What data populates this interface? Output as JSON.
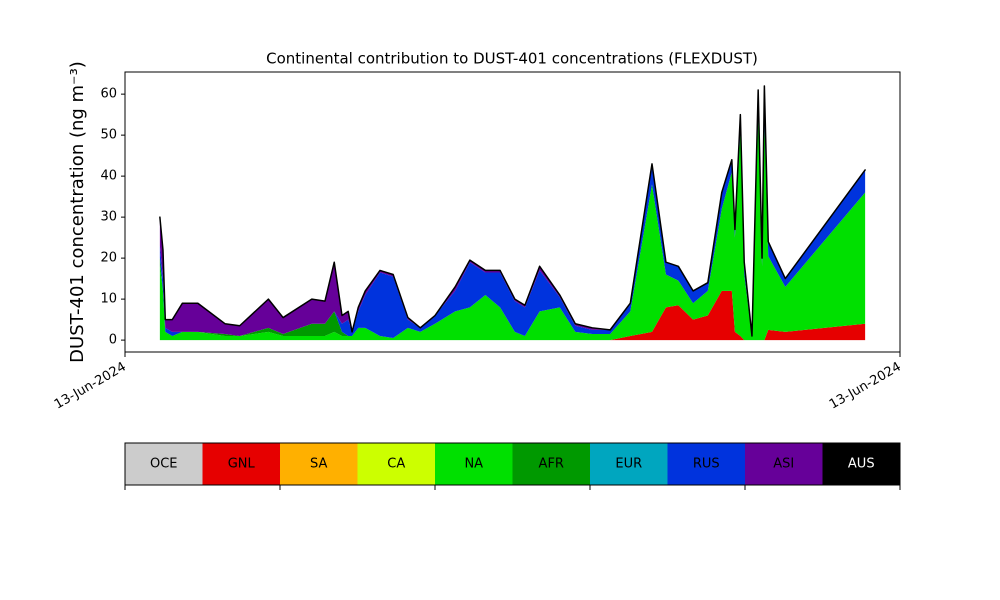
{
  "chart_data": {
    "type": "stacked-area",
    "title": "Continental contribution to DUST-401 concentrations (FLEXDUST)",
    "ylabel": "DUST-401 concentration (ng m⁻³)",
    "x": [
      4.5,
      4.9,
      5.2,
      6.1,
      7.4,
      9.4,
      12.9,
      14.8,
      18.5,
      20.4,
      24.1,
      25.8,
      27.0,
      28.0,
      28.8,
      29.3,
      30.1,
      31.0,
      32.9,
      34.6,
      36.5,
      38.1,
      40.0,
      42.6,
      44.5,
      46.5,
      48.4,
      50.3,
      51.6,
      53.5,
      56.1,
      58.1,
      60.3,
      62.6,
      65.2,
      68.0,
      69.8,
      71.4,
      73.3,
      75.2,
      77.0,
      78.3,
      78.7,
      79.4,
      79.9,
      80.9,
      81.7,
      82.2,
      82.5,
      83.0,
      85.2,
      95.5
    ],
    "xlim": [
      0,
      100
    ],
    "xticks": [
      {
        "value": 0,
        "label": "13-Jun-2024"
      },
      {
        "value": 100,
        "label": "13-Jun-2024"
      }
    ],
    "ylim": [
      -2.9,
      65.4
    ],
    "yticks": [
      0,
      10,
      20,
      30,
      40,
      50,
      60
    ],
    "series": [
      {
        "name": "OCE",
        "color": "#cccccc",
        "values": [
          0,
          0,
          0,
          0,
          0,
          0,
          0,
          0,
          0,
          0,
          0,
          0,
          0,
          0,
          0,
          0,
          0,
          0,
          0,
          0,
          0,
          0,
          0,
          0,
          0,
          0,
          0,
          0,
          0,
          0,
          0,
          0,
          0,
          0,
          0,
          0,
          0,
          0,
          0,
          0,
          0,
          0,
          0,
          0,
          0,
          0,
          0,
          0,
          0,
          0,
          0,
          0
        ]
      },
      {
        "name": "GNL",
        "color": "#e60000",
        "values": [
          0,
          0,
          0,
          0,
          0,
          0,
          0,
          0,
          0,
          0,
          0,
          0,
          0,
          0,
          0,
          0,
          0,
          0,
          0,
          0,
          0,
          0,
          0,
          0,
          0,
          0,
          0,
          0,
          0,
          0,
          0,
          0,
          0,
          0,
          1,
          2,
          8,
          8.5,
          5,
          6,
          12,
          12,
          2,
          1,
          0,
          0,
          0,
          0,
          0,
          2.5,
          2,
          4
        ]
      },
      {
        "name": "SA",
        "color": "#ffb000",
        "values": [
          0,
          0,
          0,
          0,
          0,
          0,
          0,
          0,
          0,
          0,
          0,
          0,
          0,
          0,
          0,
          0,
          0,
          0,
          0,
          0,
          0,
          0,
          0,
          0,
          0,
          0,
          0,
          0,
          0,
          0,
          0,
          0,
          0,
          0,
          0,
          0,
          0,
          0,
          0,
          0,
          0,
          0,
          0,
          0,
          0,
          0,
          0,
          0,
          0,
          0,
          0,
          0
        ]
      },
      {
        "name": "CA",
        "color": "#ccff00",
        "values": [
          0,
          0,
          0,
          0,
          0,
          0,
          0,
          0,
          0,
          0,
          0,
          0,
          0,
          0,
          0,
          0,
          0,
          0,
          0,
          0,
          0,
          0,
          0,
          0,
          0,
          0,
          0,
          0,
          0,
          0,
          0,
          0,
          0,
          0,
          0,
          0,
          0,
          0,
          0,
          0,
          0,
          0,
          0,
          0,
          0,
          0,
          0,
          0,
          0,
          0,
          0,
          0
        ]
      },
      {
        "name": "NA",
        "color": "#00e000",
        "values": [
          18,
          12,
          2,
          1,
          2,
          2,
          1,
          1,
          2,
          1,
          1,
          1,
          2,
          1,
          1,
          1,
          3,
          3,
          1,
          0.5,
          3,
          2,
          4,
          7,
          8,
          11,
          8,
          2,
          1,
          7,
          8,
          2,
          1.5,
          1.5,
          6,
          36,
          8,
          6,
          4,
          6,
          20,
          29,
          23,
          50,
          16,
          1,
          55,
          18,
          54,
          18,
          11,
          32
        ]
      },
      {
        "name": "AFR",
        "color": "#009900",
        "values": [
          2,
          0,
          0,
          0,
          0,
          0,
          0.5,
          0,
          1,
          0.5,
          3,
          3,
          5,
          1,
          0,
          0,
          0,
          0,
          0,
          0,
          0,
          0,
          0,
          0,
          0,
          0,
          0,
          0,
          0,
          0,
          0,
          0,
          0,
          0,
          0,
          0,
          0,
          0,
          0,
          0,
          0,
          0,
          0,
          0,
          0,
          0,
          0,
          0,
          0,
          0,
          0,
          0
        ]
      },
      {
        "name": "EUR",
        "color": "#00a6bf",
        "values": [
          0,
          0,
          0,
          0,
          0,
          0,
          0,
          0,
          0,
          0,
          0,
          0,
          0,
          0,
          0,
          0,
          0,
          0,
          0,
          0,
          0,
          0,
          0,
          0,
          0,
          0,
          0,
          0,
          0,
          0,
          0,
          0,
          0,
          0,
          0,
          0,
          0,
          0,
          0,
          0,
          0,
          0,
          0,
          0,
          0,
          0,
          0,
          0,
          0,
          0,
          0,
          0
        ]
      },
      {
        "name": "RUS",
        "color": "#0033dd",
        "values": [
          3,
          3,
          1,
          1,
          0,
          0,
          0,
          0,
          0,
          0,
          0,
          0,
          0,
          2,
          4,
          1,
          4,
          8,
          15.5,
          15,
          2,
          1,
          2,
          5,
          11,
          5.5,
          8.5,
          7.5,
          7,
          10,
          2.5,
          1.5,
          1,
          1,
          2,
          5,
          3,
          3.5,
          3,
          2,
          4,
          3,
          2,
          4,
          3,
          0,
          6,
          2,
          8,
          3.5,
          2,
          5.5
        ]
      },
      {
        "name": "ASI",
        "color": "#660099",
        "values": [
          7,
          7,
          2,
          3,
          7,
          7,
          2.5,
          2.5,
          7,
          4,
          6,
          5.5,
          12,
          2,
          2,
          0,
          1,
          1,
          0.5,
          0.5,
          0.5,
          0,
          0,
          1,
          0.5,
          0.5,
          0.5,
          0.5,
          0.5,
          1,
          0.5,
          0.5,
          0.5,
          0,
          0,
          0,
          0,
          0,
          0,
          0,
          0,
          0,
          0,
          0,
          0,
          0,
          0,
          0,
          0,
          0,
          0,
          0
        ]
      },
      {
        "name": "AUS",
        "color": "#000000",
        "values": [
          0,
          0,
          0,
          0,
          0,
          0,
          0,
          0,
          0,
          0,
          0,
          0,
          0,
          0,
          0,
          0,
          0,
          0,
          0,
          0,
          0,
          0,
          0,
          0,
          0,
          0,
          0,
          0,
          0,
          0,
          0,
          0,
          0,
          0,
          0,
          0,
          0,
          0,
          0,
          0,
          0,
          0,
          0,
          0,
          0,
          0,
          0,
          0,
          0,
          0,
          0,
          0
        ]
      }
    ]
  }
}
